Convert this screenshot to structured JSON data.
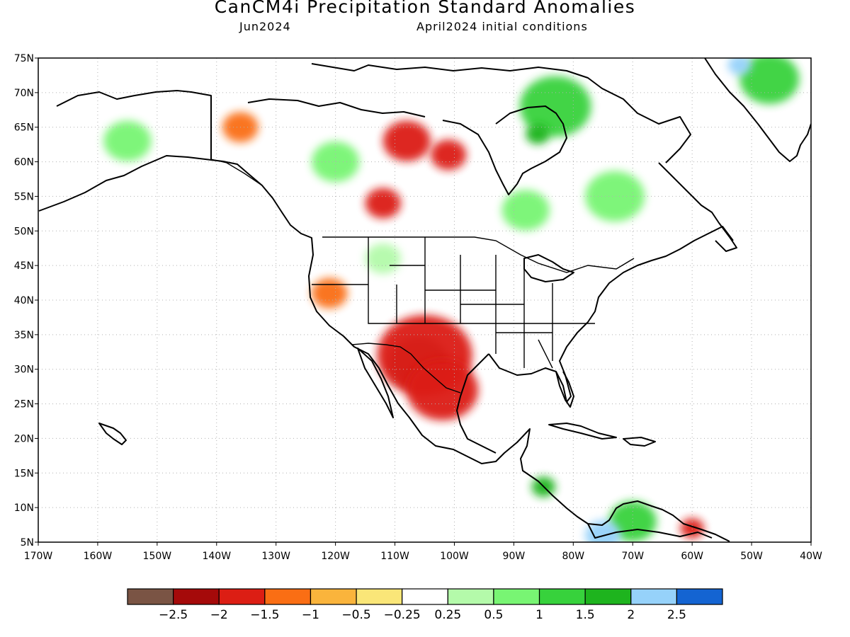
{
  "header": {
    "title": "CanCM4i Precipitation Standard Anomalies",
    "subtitle_left": "Jun2024",
    "subtitle_right": "April2024 initial conditions"
  },
  "map": {
    "projection": "equirectangular",
    "lon_range": [
      -170,
      -40
    ],
    "lat_range": [
      5,
      75
    ],
    "lon_ticks": [
      "170W",
      "160W",
      "150W",
      "140W",
      "130W",
      "120W",
      "110W",
      "100W",
      "90W",
      "80W",
      "70W",
      "60W",
      "50W",
      "40W"
    ],
    "lat_ticks": [
      "75N",
      "70N",
      "65N",
      "60N",
      "55N",
      "50N",
      "45N",
      "40N",
      "35N",
      "30N",
      "25N",
      "20N",
      "15N",
      "10N",
      "5N"
    ],
    "grid": "dotted",
    "colors": {
      "land_line": "#000000",
      "grid": "#b0b0b0"
    },
    "anomalies": [
      {
        "lon": -106,
        "lat": 31,
        "r": 5,
        "class": 0
      },
      {
        "lon": -105,
        "lat": 32,
        "r": 8,
        "class": 2
      },
      {
        "lon": -102,
        "lat": 27,
        "r": 6,
        "class": 2
      },
      {
        "lon": -112,
        "lat": 54,
        "r": 3,
        "class": 2
      },
      {
        "lon": -108,
        "lat": 63,
        "r": 4,
        "class": 2
      },
      {
        "lon": -101,
        "lat": 61,
        "r": 3,
        "class": 2
      },
      {
        "lon": -136,
        "lat": 65,
        "r": 3,
        "class": 3
      },
      {
        "lon": -121,
        "lat": 41,
        "r": 3,
        "class": 3
      },
      {
        "lon": -60,
        "lat": 7,
        "r": 2,
        "class": 2
      },
      {
        "lon": -155,
        "lat": 63,
        "r": 4,
        "class": 8
      },
      {
        "lon": -120,
        "lat": 60,
        "r": 4,
        "class": 8
      },
      {
        "lon": -88,
        "lat": 53,
        "r": 4,
        "class": 8
      },
      {
        "lon": -73,
        "lat": 55,
        "r": 5,
        "class": 8
      },
      {
        "lon": -83,
        "lat": 68,
        "r": 6,
        "class": 9
      },
      {
        "lon": -47,
        "lat": 72,
        "r": 5,
        "class": 9
      },
      {
        "lon": -112,
        "lat": 46,
        "r": 3,
        "class": 7
      },
      {
        "lon": -70,
        "lat": 8,
        "r": 4,
        "class": 9
      },
      {
        "lon": -75,
        "lat": 6,
        "r": 3,
        "class": 11
      },
      {
        "lon": -86,
        "lat": 64,
        "r": 2,
        "class": 10
      },
      {
        "lon": -52,
        "lat": 74,
        "r": 2,
        "class": 11
      },
      {
        "lon": -85,
        "lat": 13,
        "r": 2,
        "class": 10
      }
    ]
  },
  "colorbar": {
    "colors": [
      "#7a5444",
      "#a50a0a",
      "#dc1e14",
      "#fa6e14",
      "#fab43c",
      "#fae678",
      "#ffffff",
      "#b4faaa",
      "#78f573",
      "#37d23c",
      "#1eb41e",
      "#96d2fa",
      "#1464d2"
    ],
    "labels": [
      "−2.5",
      "−2",
      "−1.5",
      "−1",
      "−0.5",
      "−0.25",
      "0.25",
      "0.5",
      "1",
      "1.5",
      "2",
      "2.5"
    ]
  }
}
